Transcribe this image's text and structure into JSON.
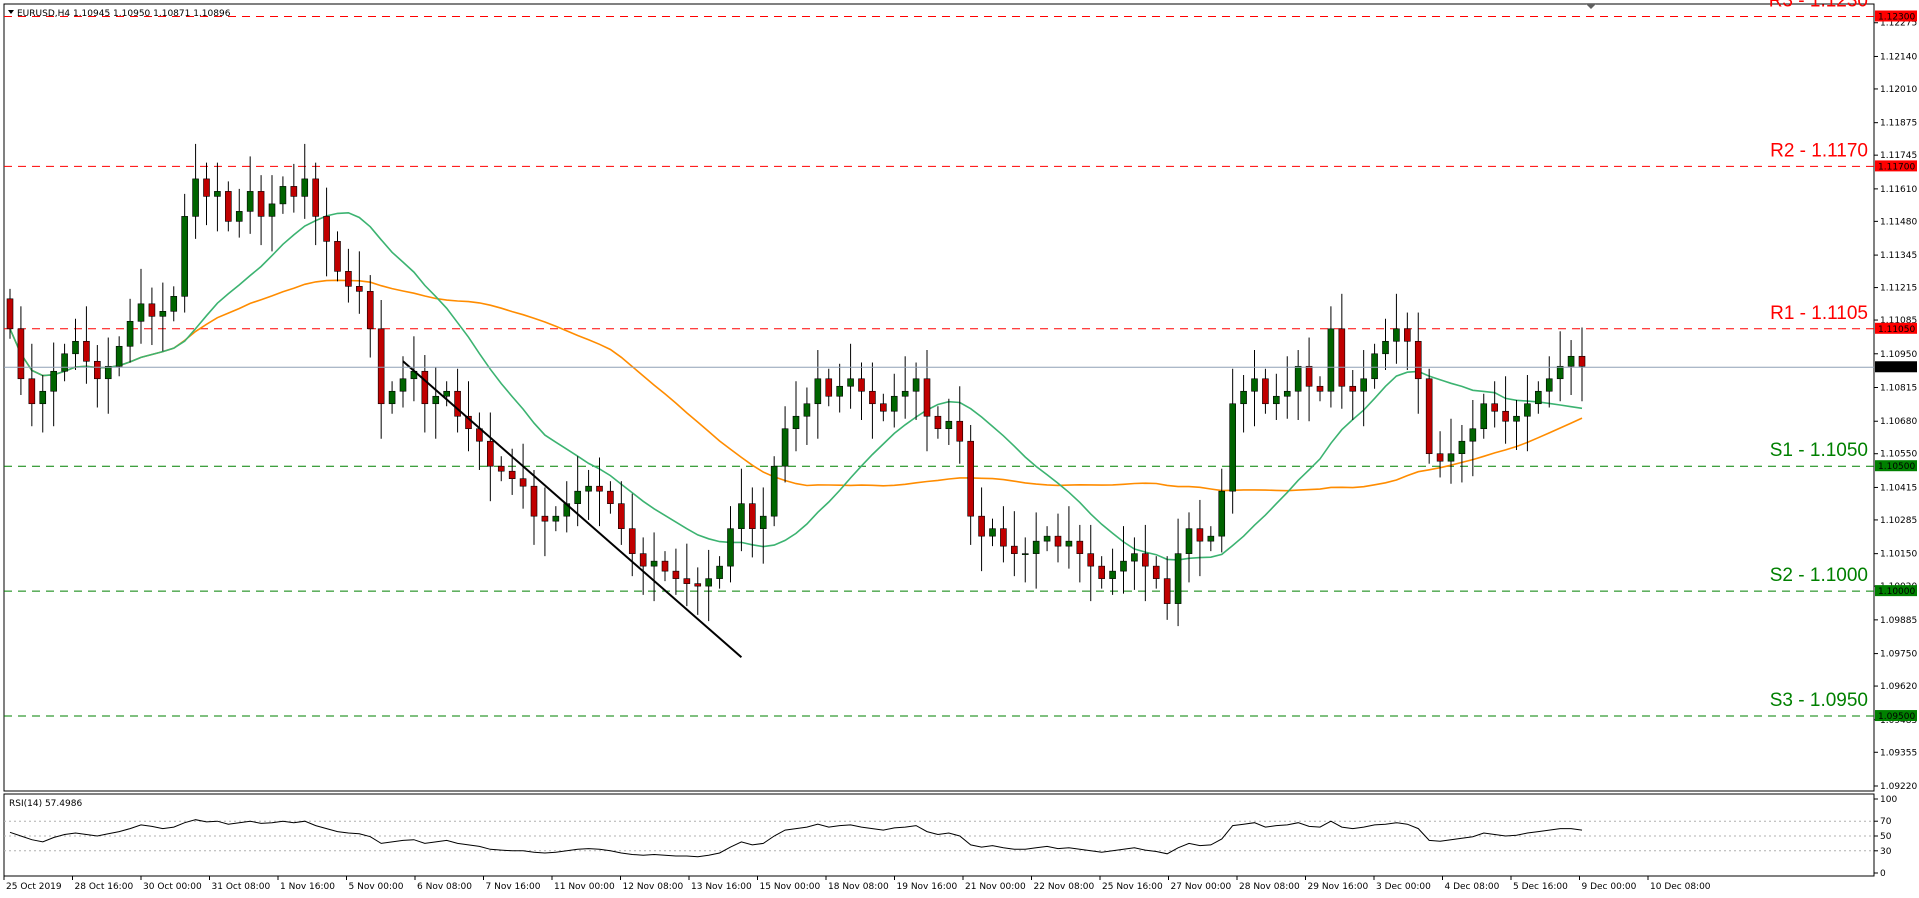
{
  "chart_data": [
    {
      "type": "candlestick",
      "title": "EURUSD,H4  1.10945 1.10950 1.10871 1.10896",
      "symbol": "EURUSD",
      "timeframe": "H4",
      "last_ohlc": {
        "open": 1.10945,
        "high": 1.1095,
        "low": 1.10871,
        "close": 1.10896
      },
      "current_price_label": "1.10896",
      "ylim": [
        1.092,
        1.1235
      ],
      "y_ticks": [
        "1.12275",
        "1.12140",
        "1.12010",
        "1.11875",
        "1.11745",
        "1.11610",
        "1.11480",
        "1.11345",
        "1.11215",
        "1.11085",
        "1.10950",
        "1.10815",
        "1.10680",
        "1.10550",
        "1.10415",
        "1.10285",
        "1.10150",
        "1.10020",
        "1.09885",
        "1.09750",
        "1.09620",
        "1.09485",
        "1.09355",
        "1.09220"
      ],
      "x_ticks": [
        "25 Oct 2019",
        "28 Oct 16:00",
        "30 Oct 00:00",
        "31 Oct 08:00",
        "1 Nov 16:00",
        "5 Nov 00:00",
        "6 Nov 08:00",
        "7 Nov 16:00",
        "11 Nov 00:00",
        "12 Nov 08:00",
        "13 Nov 16:00",
        "15 Nov 00:00",
        "18 Nov 08:00",
        "19 Nov 16:00",
        "21 Nov 00:00",
        "22 Nov 08:00",
        "25 Nov 16:00",
        "27 Nov 00:00",
        "28 Nov 08:00",
        "29 Nov 16:00",
        "3 Dec 00:00",
        "4 Dec 08:00",
        "5 Dec 16:00",
        "9 Dec 00:00",
        "10 Dec 08:00"
      ],
      "levels": [
        {
          "label": "R3 - 1.1230",
          "price": 1.123,
          "tag": "1.12300",
          "color": "#ff0000"
        },
        {
          "label": "R2 - 1.1170",
          "price": 1.117,
          "tag": "1.11700",
          "color": "#ff0000"
        },
        {
          "label": "R1 - 1.1105",
          "price": 1.1105,
          "tag": "1.11050",
          "color": "#ff0000"
        },
        {
          "label": "S1 - 1.1050",
          "price": 1.105,
          "tag": "1.10500",
          "color": "#008000"
        },
        {
          "label": "S2 - 1.1000",
          "price": 1.1,
          "tag": "1.10000",
          "color": "#008000"
        },
        {
          "label": "S3 - 1.0950",
          "price": 1.095,
          "tag": "1.09500",
          "color": "#008000"
        }
      ],
      "bull_color": "#006400",
      "bear_color": "#c00000",
      "ma_fast_color": "#3cb371",
      "ma_slow_color": "#ff8c00",
      "trendline_color": "#000000",
      "closes": [
        1.1105,
        1.1085,
        1.1075,
        1.108,
        1.1088,
        1.1095,
        1.11,
        1.1092,
        1.1085,
        1.109,
        1.1098,
        1.1108,
        1.1115,
        1.111,
        1.1112,
        1.1118,
        1.115,
        1.1165,
        1.1158,
        1.116,
        1.1148,
        1.1152,
        1.116,
        1.115,
        1.1155,
        1.1162,
        1.1158,
        1.1165,
        1.115,
        1.114,
        1.1128,
        1.1122,
        1.112,
        1.1105,
        1.1075,
        1.108,
        1.1085,
        1.1088,
        1.1075,
        1.1078,
        1.108,
        1.107,
        1.1065,
        1.106,
        1.105,
        1.1048,
        1.1045,
        1.1042,
        1.103,
        1.1028,
        1.103,
        1.1035,
        1.104,
        1.1042,
        1.104,
        1.1035,
        1.1025,
        1.1015,
        1.101,
        1.1012,
        1.1008,
        1.1005,
        1.1003,
        1.1002,
        1.1005,
        1.101,
        1.1025,
        1.1035,
        1.1025,
        1.103,
        1.105,
        1.1065,
        1.107,
        1.1075,
        1.1085,
        1.1078,
        1.1082,
        1.1085,
        1.108,
        1.1075,
        1.1072,
        1.1078,
        1.108,
        1.1085,
        1.107,
        1.1065,
        1.1068,
        1.106,
        1.103,
        1.1022,
        1.1025,
        1.1018,
        1.1015,
        1.1015,
        1.102,
        1.1022,
        1.1018,
        1.102,
        1.1015,
        1.101,
        1.1005,
        1.1008,
        1.1012,
        1.1015,
        1.101,
        1.1005,
        1.0995,
        1.1015,
        1.1025,
        1.102,
        1.1022,
        1.104,
        1.1075,
        1.108,
        1.1085,
        1.1075,
        1.1078,
        1.108,
        1.109,
        1.1082,
        1.108,
        1.1105,
        1.1082,
        1.108,
        1.1085,
        1.1095,
        1.11,
        1.1105,
        1.11,
        1.1085,
        1.1055,
        1.1052,
        1.1055,
        1.106,
        1.1065,
        1.1075,
        1.1072,
        1.1068,
        1.107,
        1.1075,
        1.108,
        1.1085,
        1.109,
        1.1094,
        1.109
      ]
    },
    {
      "type": "line",
      "title": "RSI(14) 57.4986",
      "ylim": [
        0,
        100
      ],
      "y_ticks": [
        "100",
        "70",
        "50",
        "30",
        "0"
      ],
      "reference_lines": [
        30,
        50,
        70
      ],
      "color": "#000000",
      "values": [
        55,
        50,
        45,
        42,
        48,
        52,
        54,
        52,
        50,
        53,
        56,
        60,
        65,
        63,
        60,
        62,
        68,
        72,
        69,
        70,
        66,
        68,
        70,
        67,
        68,
        70,
        68,
        70,
        64,
        60,
        56,
        54,
        53,
        49,
        40,
        42,
        44,
        45,
        40,
        42,
        44,
        40,
        38,
        36,
        32,
        31,
        30,
        30,
        28,
        27,
        28,
        30,
        32,
        33,
        32,
        30,
        27,
        25,
        24,
        25,
        24,
        23,
        23,
        22,
        24,
        27,
        35,
        42,
        38,
        40,
        50,
        58,
        60,
        62,
        66,
        62,
        64,
        65,
        62,
        60,
        58,
        61,
        62,
        64,
        56,
        52,
        54,
        50,
        38,
        35,
        37,
        34,
        32,
        32,
        34,
        36,
        33,
        34,
        32,
        30,
        28,
        30,
        32,
        34,
        31,
        29,
        26,
        34,
        40,
        37,
        38,
        46,
        64,
        66,
        68,
        62,
        64,
        65,
        68,
        63,
        62,
        70,
        62,
        60,
        62,
        65,
        66,
        68,
        66,
        60,
        44,
        43,
        45,
        47,
        49,
        54,
        52,
        50,
        51,
        54,
        56,
        58,
        60,
        60,
        58
      ]
    }
  ]
}
